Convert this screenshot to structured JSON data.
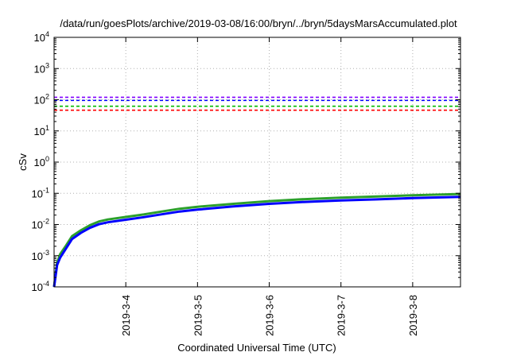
{
  "chart_data": {
    "type": "line",
    "title": "/data/run/goesPlots/archive/2019-03-08/16:00/bryn/../bryn/5daysMarsAccumulated.plot",
    "xlabel": "Coordinated Universal Time (UTC)",
    "ylabel": "cSv",
    "xscale": "time",
    "yscale": "log",
    "xlim": [
      "2019-03-03T00:00",
      "2019-03-08T16:00"
    ],
    "ylim": [
      0.0001,
      10000
    ],
    "x_ticks": [
      "2019-3-4",
      "2019-3-5",
      "2019-3-6",
      "2019-3-7",
      "2019-3-8"
    ],
    "y_ticks": [
      {
        "base": "10",
        "exp": "-4"
      },
      {
        "base": "10",
        "exp": "-3"
      },
      {
        "base": "10",
        "exp": "-2"
      },
      {
        "base": "10",
        "exp": "-1"
      },
      {
        "base": "10",
        "exp": "0"
      },
      {
        "base": "10",
        "exp": "1"
      },
      {
        "base": "10",
        "exp": "2"
      },
      {
        "base": "10",
        "exp": "3"
      },
      {
        "base": "10",
        "exp": "4"
      }
    ],
    "grid": true,
    "thresholds": [
      {
        "value": 120,
        "color": "#8000ff",
        "style": "dashed"
      },
      {
        "value": 95,
        "color": "#0000ff",
        "style": "dashed"
      },
      {
        "value": 62,
        "color": "#00bb00",
        "style": "dashed"
      },
      {
        "value": 46,
        "color": "#ff0000",
        "style": "dashed"
      }
    ],
    "series": [
      {
        "color": "#2ca02c",
        "x": [
          "2019-03-03T00:00",
          "2019-03-03T01:00",
          "2019-03-03T02:00",
          "2019-03-03T04:00",
          "2019-03-03T06:00",
          "2019-03-03T09:00",
          "2019-03-03T12:00",
          "2019-03-03T15:00",
          "2019-03-03T18:00",
          "2019-03-04T00:00",
          "2019-03-04T06:00",
          "2019-03-04T12:00",
          "2019-03-04T18:00",
          "2019-03-05T00:00",
          "2019-03-05T12:00",
          "2019-03-06T00:00",
          "2019-03-06T12:00",
          "2019-03-07T00:00",
          "2019-03-07T12:00",
          "2019-03-08T00:00",
          "2019-03-08T16:00"
        ],
        "y": [
          0.0001,
          0.0006,
          0.0011,
          0.0021,
          0.0042,
          0.0065,
          0.0095,
          0.0125,
          0.0145,
          0.0175,
          0.021,
          0.026,
          0.032,
          0.037,
          0.046,
          0.056,
          0.065,
          0.072,
          0.079,
          0.086,
          0.095
        ]
      },
      {
        "color": "#0000ff",
        "x": [
          "2019-03-03T00:00",
          "2019-03-03T01:00",
          "2019-03-03T02:00",
          "2019-03-03T04:00",
          "2019-03-03T06:00",
          "2019-03-03T09:00",
          "2019-03-03T12:00",
          "2019-03-03T15:00",
          "2019-03-03T18:00",
          "2019-03-04T00:00",
          "2019-03-04T06:00",
          "2019-03-04T12:00",
          "2019-03-04T18:00",
          "2019-03-05T00:00",
          "2019-03-05T12:00",
          "2019-03-06T00:00",
          "2019-03-06T12:00",
          "2019-03-07T00:00",
          "2019-03-07T12:00",
          "2019-03-08T00:00",
          "2019-03-08T16:00"
        ],
        "y": [
          0.0001,
          0.0005,
          0.00085,
          0.0017,
          0.0034,
          0.0054,
          0.0078,
          0.0102,
          0.0118,
          0.0142,
          0.0172,
          0.0212,
          0.026,
          0.03,
          0.038,
          0.046,
          0.053,
          0.059,
          0.064,
          0.07,
          0.077
        ]
      }
    ]
  }
}
